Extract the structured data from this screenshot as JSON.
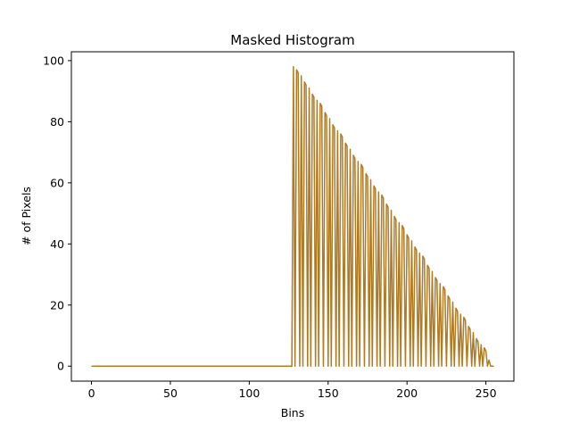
{
  "chart_data": {
    "type": "line",
    "title": "Masked Histogram",
    "xlabel": "Bins",
    "ylabel": "# of Pixels",
    "xlim": [
      -12.75,
      267.75
    ],
    "ylim": [
      -4.9,
      102.9
    ],
    "x_ticks": [
      0,
      50,
      100,
      150,
      200,
      250
    ],
    "y_ticks": [
      0,
      20,
      40,
      60,
      80,
      100
    ],
    "grid": false,
    "legend": "none",
    "line_color": "#b07a22",
    "series": [
      {
        "x": [
          0,
          127,
          128,
          129,
          130,
          131,
          132,
          133,
          134,
          135,
          136,
          137,
          138,
          139,
          140,
          141,
          142,
          143,
          144,
          145,
          146,
          147,
          148,
          149,
          150,
          151,
          152,
          153,
          154,
          155,
          156,
          157,
          158,
          159,
          160,
          161,
          162,
          163,
          164,
          165,
          166,
          167,
          168,
          169,
          170,
          171,
          172,
          173,
          174,
          175,
          176,
          177,
          178,
          179,
          180,
          181,
          182,
          183,
          184,
          185,
          186,
          187,
          188,
          189,
          190,
          191,
          192,
          193,
          194,
          195,
          196,
          197,
          198,
          199,
          200,
          201,
          202,
          203,
          204,
          205,
          206,
          207,
          208,
          209,
          210,
          211,
          212,
          213,
          214,
          215,
          216,
          217,
          218,
          219,
          220,
          221,
          222,
          223,
          224,
          225,
          226,
          227,
          228,
          229,
          230,
          231,
          232,
          233,
          234,
          235,
          236,
          237,
          238,
          239,
          240,
          241,
          242,
          243,
          244,
          245,
          246,
          247,
          248,
          249,
          250,
          251,
          252,
          253,
          254,
          255
        ],
        "y": [
          0,
          0,
          98,
          0,
          97,
          96,
          0,
          95,
          0,
          93,
          92,
          0,
          91,
          0,
          89,
          88,
          0,
          87,
          0,
          86,
          85,
          0,
          83,
          82,
          0,
          81,
          0,
          79,
          78,
          0,
          77,
          0,
          76,
          75,
          0,
          73,
          72,
          0,
          71,
          0,
          69,
          68,
          0,
          67,
          0,
          66,
          65,
          0,
          63,
          62,
          0,
          61,
          0,
          59,
          58,
          0,
          57,
          0,
          56,
          55,
          0,
          53,
          52,
          0,
          51,
          0,
          49,
          48,
          0,
          47,
          0,
          46,
          45,
          0,
          43,
          42,
          0,
          41,
          0,
          39,
          38,
          0,
          37,
          0,
          36,
          35,
          0,
          33,
          32,
          0,
          31,
          0,
          29,
          28,
          0,
          27,
          0,
          26,
          25,
          0,
          23,
          22,
          0,
          21,
          0,
          19,
          18,
          0,
          17,
          0,
          16,
          15,
          0,
          13,
          12,
          0,
          11,
          0,
          9,
          8,
          0,
          7,
          0,
          6,
          5,
          0,
          2,
          0,
          0,
          0
        ]
      }
    ]
  }
}
